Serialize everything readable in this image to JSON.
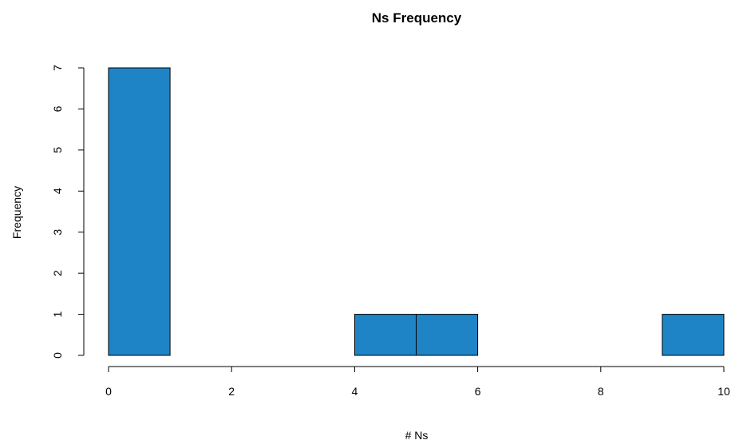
{
  "chart_data": {
    "type": "bar",
    "title": "Ns Frequency",
    "xlabel": "# Ns",
    "ylabel": "Frequency",
    "bins": [
      {
        "start": 0,
        "end": 1,
        "count": 7
      },
      {
        "start": 1,
        "end": 2,
        "count": 0
      },
      {
        "start": 2,
        "end": 3,
        "count": 0
      },
      {
        "start": 3,
        "end": 4,
        "count": 0
      },
      {
        "start": 4,
        "end": 5,
        "count": 1
      },
      {
        "start": 5,
        "end": 6,
        "count": 1
      },
      {
        "start": 6,
        "end": 7,
        "count": 0
      },
      {
        "start": 7,
        "end": 8,
        "count": 0
      },
      {
        "start": 8,
        "end": 9,
        "count": 0
      },
      {
        "start": 9,
        "end": 10,
        "count": 1
      }
    ],
    "xlim": [
      0,
      10
    ],
    "ylim": [
      0,
      7
    ],
    "x_ticks": [
      0,
      2,
      4,
      6,
      8,
      10
    ],
    "y_ticks": [
      0,
      1,
      2,
      3,
      4,
      5,
      6,
      7
    ],
    "grid": false,
    "bar_color": "#1f84c6"
  }
}
